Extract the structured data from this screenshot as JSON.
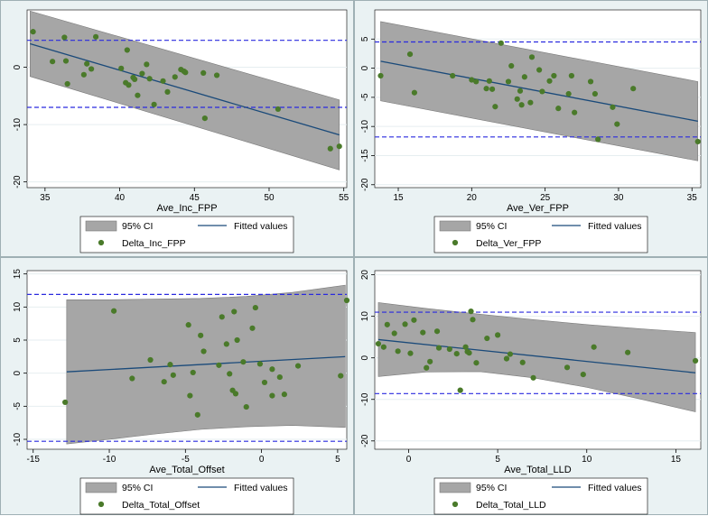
{
  "colors": {
    "panel_bg": "#eaf2f3",
    "plot_bg": "#ffffff",
    "ci_fill": "#a6a6a6",
    "ci_stroke": "#7a7a7a",
    "fit_line": "#1a4a7a",
    "points": "#4a7a2a",
    "ref_lines": "#2a2adf",
    "grid": "#e6eef0"
  },
  "chart_data": [
    {
      "type": "scatter",
      "xlabel": "Ave_Inc_FPP",
      "ylabel": "",
      "xlim": [
        33.8,
        55.2
      ],
      "ylim": [
        -21,
        10
      ],
      "xticks": [
        35,
        40,
        45,
        50,
        55
      ],
      "yticks": [
        -20,
        -10,
        0
      ],
      "ref_lines": [
        4.7,
        -7
      ],
      "fit": {
        "x": [
          34,
          54.7
        ],
        "y": [
          4.1,
          -11.8
        ]
      },
      "ci": {
        "x": [
          34,
          54.7
        ],
        "upper": [
          9.8,
          -5.7
        ],
        "lower": [
          -1.6,
          -17.9
        ]
      },
      "points": {
        "name": "Delta_Inc_FPP",
        "x": [
          34.2,
          35.5,
          36.3,
          36.4,
          36.5,
          37.6,
          37.8,
          38.1,
          38.4,
          40.1,
          40.4,
          40.5,
          40.6,
          40.9,
          41.0,
          41.2,
          41.5,
          41.8,
          42.0,
          42.3,
          42.9,
          43.2,
          43.7,
          44.1,
          44.3,
          44.4,
          45.6,
          45.7,
          46.5,
          50.6,
          54.1,
          54.7
        ],
        "y": [
          6.2,
          1.0,
          5.2,
          1.1,
          -2.9,
          -1.3,
          0.6,
          -0.3,
          5.3,
          -0.2,
          -2.7,
          3.0,
          -3.1,
          -1.8,
          -2.1,
          -4.9,
          -1.1,
          0.5,
          -2.0,
          -6.5,
          -2.4,
          -4.3,
          -1.7,
          -0.4,
          -0.7,
          -0.9,
          -1.0,
          -8.9,
          -1.4,
          -7.3,
          -14.2,
          -13.8
        ]
      },
      "legend": {
        "ci_label": "95% CI",
        "fit_label": "Fitted values",
        "points_label": "Delta_Inc_FPP"
      }
    },
    {
      "type": "scatter",
      "xlabel": "Ave_Ver_FPP",
      "ylabel": "",
      "xlim": [
        13.4,
        35.6
      ],
      "ylim": [
        -20.5,
        10
      ],
      "xticks": [
        15,
        20,
        25,
        30,
        35
      ],
      "yticks": [
        -20,
        -15,
        -10,
        -5,
        0,
        5
      ],
      "ref_lines": [
        4.5,
        -11.8
      ],
      "fit": {
        "x": [
          13.8,
          35.4
        ],
        "y": [
          1.2,
          -9.1
        ]
      },
      "ci": {
        "x": [
          13.8,
          35.4
        ],
        "upper": [
          8.0,
          -2.3
        ],
        "lower": [
          -5.6,
          -15.9
        ]
      },
      "points": {
        "name": "Delta_Ver_FPP",
        "x": [
          13.8,
          15.8,
          16.1,
          18.7,
          20.0,
          20.3,
          21.0,
          21.2,
          21.4,
          21.6,
          22.0,
          22.5,
          22.7,
          23.1,
          23.3,
          23.4,
          23.6,
          24.0,
          24.1,
          24.6,
          24.8,
          25.3,
          25.6,
          25.9,
          26.6,
          26.8,
          27.0,
          28.1,
          28.4,
          28.6,
          29.6,
          29.9,
          31.0,
          35.4
        ],
        "y": [
          -1.3,
          2.4,
          -4.2,
          -1.3,
          -2.0,
          -2.3,
          -3.5,
          -2.2,
          -3.6,
          -6.6,
          4.3,
          -2.3,
          0.4,
          -5.3,
          -3.9,
          -6.3,
          -1.5,
          -5.9,
          1.9,
          -0.3,
          -4.0,
          -2.2,
          -1.3,
          -6.9,
          -4.4,
          -1.3,
          -7.6,
          -2.3,
          -4.4,
          -12.2,
          -6.7,
          -9.6,
          -3.5,
          -12.6
        ]
      },
      "legend": {
        "ci_label": "95% CI",
        "fit_label": "Fitted values",
        "points_label": "Delta_Ver_FPP"
      }
    },
    {
      "type": "scatter",
      "xlabel": "Ave_Total_Offset",
      "ylabel": "",
      "xlim": [
        -15.4,
        5.6
      ],
      "ylim": [
        -11.5,
        15.5
      ],
      "xticks": [
        -15,
        -10,
        -5,
        0,
        5
      ],
      "yticks": [
        -10,
        -5,
        0,
        5,
        10,
        15
      ],
      "ref_lines": [
        11.9,
        -10.3
      ],
      "fit": {
        "x": [
          -12.8,
          5.5
        ],
        "y": [
          0.2,
          2.5
        ]
      },
      "ci": {
        "x": [
          -12.8,
          -10,
          -7,
          -4,
          -1,
          2,
          5.5
        ],
        "upper": [
          11.1,
          11.1,
          11.2,
          11.3,
          11.6,
          12.2,
          13.3
        ],
        "lower": [
          -10.7,
          -10.0,
          -9.2,
          -8.5,
          -8.1,
          -7.9,
          -8.2
        ]
      },
      "points": {
        "name": "Delta_Total_Offset",
        "x": [
          -12.9,
          -9.7,
          -8.5,
          -7.3,
          -6.4,
          -6.0,
          -5.8,
          -4.8,
          -4.7,
          -4.5,
          -4.2,
          -4.0,
          -3.8,
          -2.8,
          -2.6,
          -2.3,
          -2.1,
          -1.9,
          -1.8,
          -1.7,
          -1.6,
          -1.2,
          -1.0,
          -0.6,
          -0.4,
          -0.1,
          0.2,
          0.7,
          0.7,
          1.2,
          1.5,
          2.4,
          5.2,
          5.6
        ],
        "y": [
          -4.4,
          9.4,
          -0.8,
          2.0,
          -1.3,
          1.3,
          -0.3,
          7.3,
          -3.4,
          0.1,
          -6.3,
          5.7,
          3.3,
          1.2,
          8.5,
          4.4,
          -0.1,
          -2.6,
          9.3,
          -3.1,
          5.0,
          1.7,
          -5.1,
          6.8,
          9.9,
          1.4,
          -1.4,
          -3.4,
          0.6,
          -0.6,
          -3.2,
          1.1,
          -0.4,
          11.0
        ]
      },
      "legend": {
        "ci_label": "95% CI",
        "fit_label": "Fitted values",
        "points_label": "Delta_Total_Offset"
      }
    },
    {
      "type": "scatter",
      "xlabel": "Ave_Total_LLD",
      "ylabel": "",
      "xlim": [
        -1.9,
        16.4
      ],
      "ylim": [
        -22,
        21
      ],
      "xticks": [
        0,
        5,
        10,
        15
      ],
      "yticks": [
        -20,
        -10,
        0,
        10,
        20
      ],
      "ref_lines": [
        11.0,
        -8.6
      ],
      "fit": {
        "x": [
          -1.7,
          16.1
        ],
        "y": [
          4.4,
          -3.6
        ]
      },
      "ci": {
        "x": [
          -1.7,
          1,
          4,
          7,
          10,
          13,
          16.1
        ],
        "upper": [
          13.3,
          11.9,
          10.5,
          9.2,
          8.0,
          7.0,
          6.1
        ],
        "lower": [
          -4.5,
          -3.4,
          -3.3,
          -4.8,
          -7.1,
          -9.9,
          -13.0
        ]
      },
      "points": {
        "name": "Delta_Total_LLD",
        "x": [
          -1.7,
          -1.4,
          -1.2,
          -0.8,
          -0.6,
          -0.2,
          0.1,
          0.3,
          0.8,
          1.0,
          1.2,
          1.6,
          1.7,
          2.3,
          2.7,
          2.9,
          3.2,
          3.3,
          3.4,
          3.5,
          3.6,
          3.8,
          4.4,
          5.0,
          5.5,
          5.7,
          6.4,
          7.0,
          8.9,
          9.8,
          10.4,
          12.3,
          16.1
        ],
        "y": [
          3.4,
          2.6,
          8.0,
          5.9,
          1.6,
          8.1,
          1.1,
          9.1,
          6.1,
          -2.4,
          -0.9,
          6.4,
          2.4,
          2.1,
          1.0,
          -7.8,
          2.6,
          1.5,
          1.2,
          11.2,
          9.2,
          -1.2,
          4.7,
          5.5,
          -0.2,
          0.9,
          -1.1,
          -4.8,
          -2.3,
          -4.0,
          2.6,
          1.3,
          -0.7
        ]
      },
      "legend": {
        "ci_label": "95% CI",
        "fit_label": "Fitted values",
        "points_label": "Delta_Total_LLD"
      }
    }
  ]
}
